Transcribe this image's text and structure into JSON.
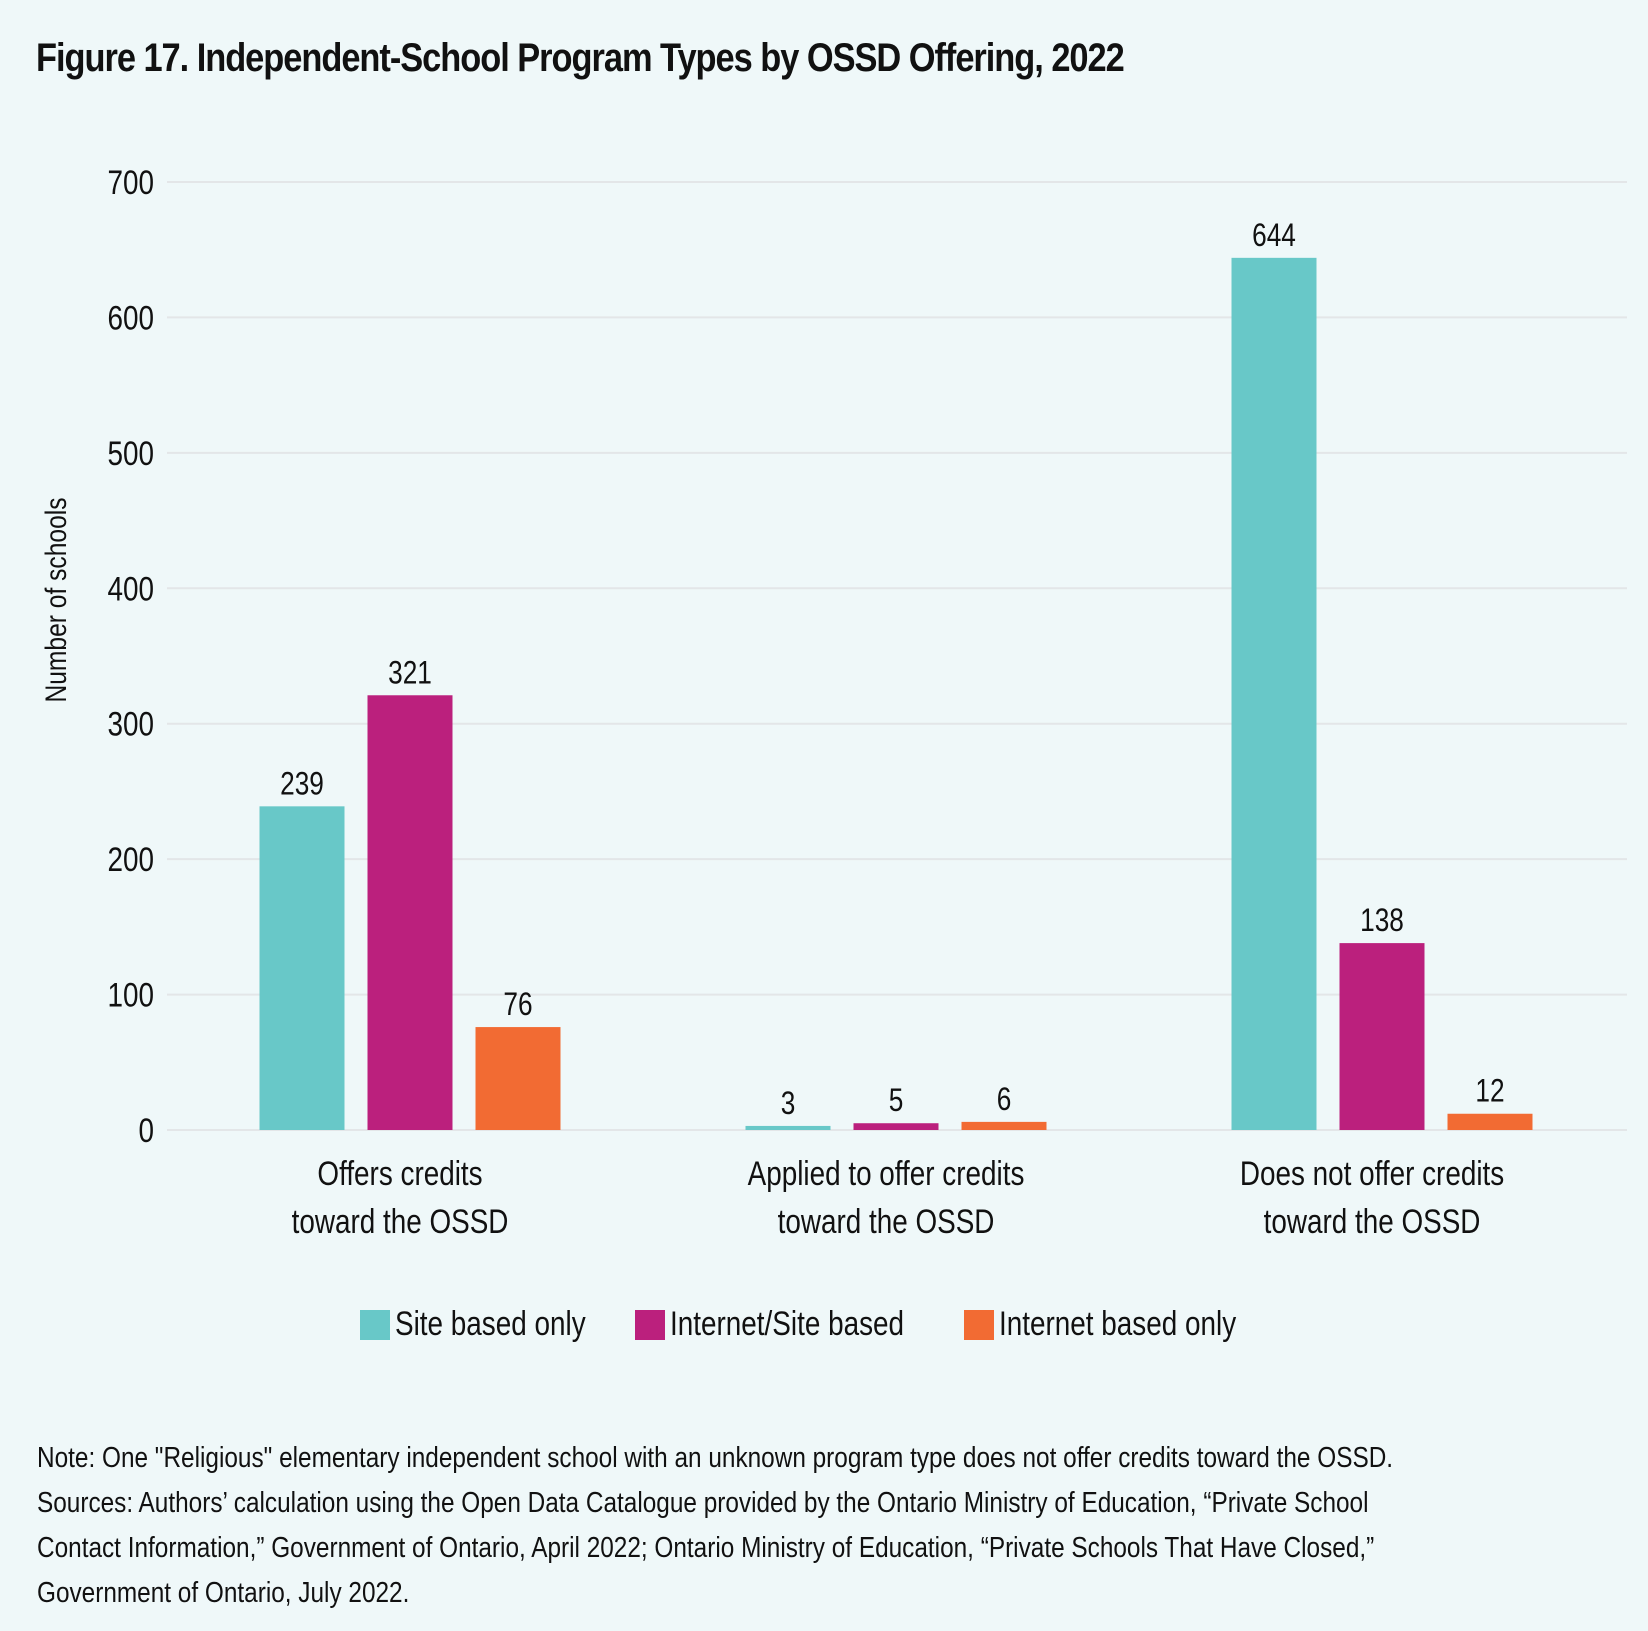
{
  "figure": {
    "title": "Figure 17. Independent-School Program Types by OSSD Offering, 2022"
  },
  "chart_data": {
    "type": "bar",
    "title": "Figure 17. Independent-School Program Types by OSSD Offering, 2022",
    "xlabel": "",
    "ylabel": "Number of schools",
    "ylim": [
      0,
      700
    ],
    "yticks": [
      0,
      100,
      200,
      300,
      400,
      500,
      600,
      700
    ],
    "grid": true,
    "legend_position": "bottom-center",
    "categories": [
      [
        "Offers credits",
        "toward the OSSD"
      ],
      [
        "Applied to offer credits",
        "toward the OSSD"
      ],
      [
        "Does not offer credits",
        "toward the OSSD"
      ]
    ],
    "series": [
      {
        "name": "Site based only",
        "color": "#68c8c8",
        "values": [
          239,
          3,
          644
        ]
      },
      {
        "name": "Internet/Site based",
        "color": "#bb207d",
        "values": [
          321,
          5,
          138
        ]
      },
      {
        "name": "Internet based only",
        "color": "#f26b33",
        "values": [
          76,
          6,
          12
        ]
      }
    ],
    "gridline_color": "#e3e6e8"
  },
  "legend": {
    "items": [
      {
        "label": "Site based only",
        "color": "#68c8c8"
      },
      {
        "label": "Internet/Site based",
        "color": "#bb207d"
      },
      {
        "label": "Internet based only",
        "color": "#f26b33"
      }
    ]
  },
  "notes": {
    "note": "Note: One \"Religious\" elementary independent school with an unknown program type does not offer credits toward the OSSD.",
    "sources_lines": [
      "Sources: Authors’ calculation using the Open Data Catalogue provided by the Ontario Ministry of Education, “Private School",
      "Contact Information,” Government of Ontario, April 2022; Ontario Ministry of Education, “Private Schools That Have Closed,”",
      "Government of Ontario, July 2022."
    ]
  }
}
